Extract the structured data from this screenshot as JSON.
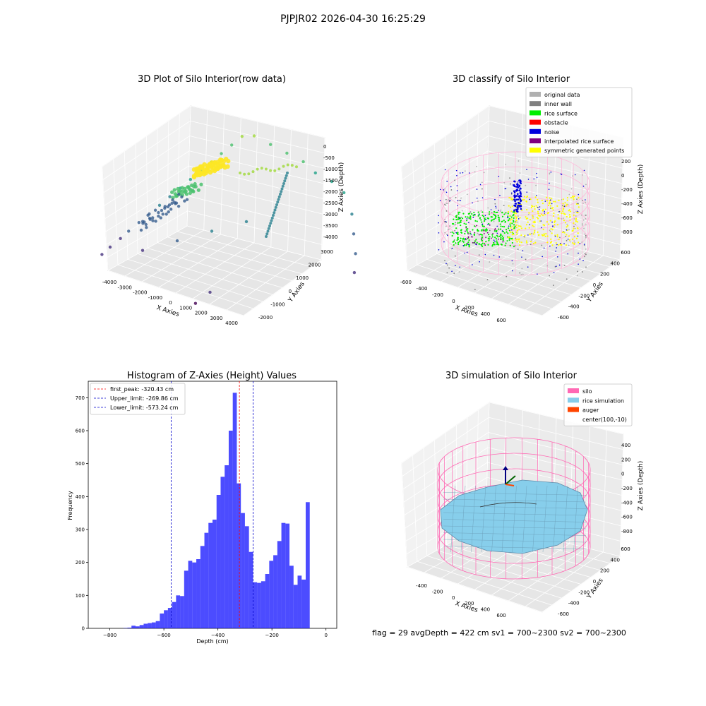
{
  "figure": {
    "suptitle": "PJPJR02 2026-04-30 16:25:29",
    "status_text": "flag = 29  avgDepth = 422 cm  sv1 = 700~2300  sv2 = 700~2300"
  },
  "chart_data": [
    {
      "type": "scatter3d",
      "title": "3D Plot of Silo Interior(row data)",
      "xlabel": "X Axies",
      "ylabel": "Y Axies",
      "zlabel": "Z Axies (Depth)",
      "xticks": [
        "-4000",
        "-3000",
        "-2000",
        "-1000",
        "0",
        "1000",
        "2000",
        "3000",
        "4000"
      ],
      "yticks": [
        "-2000",
        "-1000",
        "0",
        "1000",
        "2000",
        "3000"
      ],
      "zticks": [
        "0",
        "-500",
        "-1000",
        "-1500",
        "-2000",
        "-2500",
        "-3000",
        "-3500",
        "-4000"
      ],
      "colormap": "viridis",
      "points": [
        [
          -3200,
          -600,
          -3600
        ],
        [
          -3000,
          -500,
          -3400
        ],
        [
          -2800,
          -300,
          -3200
        ],
        [
          -2600,
          -200,
          -3000
        ],
        [
          -2400,
          0,
          -2800
        ],
        [
          -2200,
          200,
          -2600
        ],
        [
          -2000,
          400,
          -2400
        ],
        [
          -1800,
          600,
          -2200
        ],
        [
          -1600,
          800,
          -2000
        ],
        [
          -1400,
          1000,
          -1800
        ],
        [
          -1200,
          1200,
          -1600
        ],
        [
          -1000,
          1400,
          -1400
        ],
        [
          -800,
          1600,
          -1200
        ],
        [
          -600,
          1800,
          -1000
        ],
        [
          -400,
          2000,
          -800
        ],
        [
          0,
          2000,
          -700
        ],
        [
          400,
          2200,
          -900
        ],
        [
          800,
          2400,
          -1100
        ],
        [
          1200,
          2600,
          -1300
        ],
        [
          1600,
          2600,
          -1500
        ],
        [
          2000,
          2800,
          -1700
        ],
        [
          2400,
          2800,
          -1900
        ],
        [
          2800,
          2600,
          -2300
        ],
        [
          3000,
          2400,
          -2700
        ],
        [
          3200,
          2200,
          -3100
        ],
        [
          3300,
          2000,
          -3500
        ],
        [
          500,
          -800,
          -3700
        ],
        [
          300,
          -1200,
          -3900
        ],
        [
          -2000,
          -400,
          -3300
        ],
        [
          -1000,
          -200,
          -2900
        ],
        [
          0,
          0,
          -2500
        ],
        [
          1000,
          200,
          -2100
        ]
      ]
    },
    {
      "type": "scatter3d",
      "title": "3D classify of Silo Interior",
      "xlabel": "X Axies",
      "ylabel": "Y Axies",
      "zlabel": "Z Axies (Depth)",
      "xticks": [
        "-600",
        "-400",
        "-200",
        "0",
        "200",
        "400",
        "600"
      ],
      "yticks": [
        "-600",
        "-400",
        "-200",
        "0",
        "200",
        "400",
        "600"
      ],
      "zticks": [
        "200",
        "0",
        "-200",
        "-400",
        "-600",
        "-800"
      ],
      "legend": [
        {
          "label": "original data",
          "color": "#b0b0b0"
        },
        {
          "label": "inner wall",
          "color": "#808080"
        },
        {
          "label": "rice surface",
          "color": "#00ee00"
        },
        {
          "label": "obstacle",
          "color": "#ff0000"
        },
        {
          "label": "noise",
          "color": "#0000dd"
        },
        {
          "label": "interpolated rice surface",
          "color": "#800080"
        },
        {
          "label": "symmetric generated points",
          "color": "#ffff00"
        }
      ],
      "silo_color": "#ffb6d9"
    },
    {
      "type": "histogram",
      "title": "Histogram of Z-Axies (Height) Values",
      "xlabel": "Depth (cm)",
      "ylabel": "Frequency",
      "xlim": [
        -880,
        40
      ],
      "ylim": [
        0,
        750
      ],
      "xticks": [
        -800,
        -600,
        -400,
        -200,
        0
      ],
      "yticks": [
        0,
        100,
        200,
        300,
        400,
        500,
        600,
        700
      ],
      "bar_color": "#0000ff",
      "bin_edges_start": -750,
      "bin_width": 15,
      "counts": [
        1,
        2,
        8,
        6,
        10,
        14,
        16,
        18,
        22,
        45,
        55,
        62,
        80,
        100,
        98,
        175,
        205,
        200,
        210,
        250,
        290,
        320,
        330,
        405,
        460,
        495,
        600,
        715,
        440,
        350,
        310,
        232,
        140,
        138,
        143,
        165,
        205,
        222,
        265,
        320,
        318,
        190,
        132,
        160,
        148,
        383
      ],
      "vlines": [
        {
          "label": "first_peak: -320.43 cm",
          "x": -320.43,
          "color": "#ff0000"
        },
        {
          "label": "Upper_limit: -269.86 cm",
          "x": -269.86,
          "color": "#0000cc"
        },
        {
          "label": "Lower_limit: -573.24 cm",
          "x": -573.24,
          "color": "#0000cc"
        }
      ]
    },
    {
      "type": "surface3d",
      "title": "3D simulation of Silo Interior",
      "xlabel": "X Axies",
      "ylabel": "Y Axies",
      "zlabel": "Z Axies (Depth)",
      "xticks": [
        "-400",
        "-200",
        "0",
        "200",
        "400",
        "600"
      ],
      "yticks": [
        "-600",
        "-400",
        "-200",
        "0",
        "200",
        "400",
        "600"
      ],
      "zticks": [
        "400",
        "200",
        "0",
        "-200",
        "-400",
        "-600",
        "-800"
      ],
      "legend": [
        {
          "label": "silo",
          "color": "#ff69b4"
        },
        {
          "label": "rice simulation",
          "color": "#87ceeb"
        },
        {
          "label": "auger",
          "color": "#ff4500"
        },
        {
          "label": "center(100,-10)",
          "color": ""
        }
      ]
    }
  ]
}
